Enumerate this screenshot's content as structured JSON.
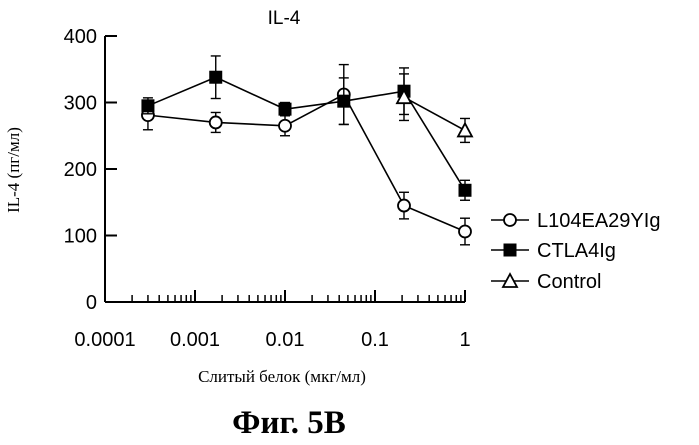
{
  "figure_label": "Фиг. 5B",
  "chart_data": {
    "type": "line",
    "title": "IL-4",
    "xlabel": "Слитый белок (мкг/мл)",
    "ylabel": "IL-4 (пг/мл)",
    "xscale": "log",
    "xlim": [
      0.0001,
      1
    ],
    "ylim": [
      0,
      400
    ],
    "x_tick_labels": [
      "0.0001",
      "0.001",
      "0.01",
      "0.1",
      "1"
    ],
    "x_tick_values": [
      0.0001,
      0.001,
      0.01,
      0.1,
      1
    ],
    "y_tick_labels": [
      "0",
      "100",
      "200",
      "300",
      "400"
    ],
    "y_tick_values": [
      0,
      100,
      200,
      300,
      400
    ],
    "grid": false,
    "legend_position": "right",
    "series": [
      {
        "name": "L104EA29YIg",
        "marker": "open-circle",
        "x": [
          0.0003,
          0.0017,
          0.01,
          0.045,
          0.21,
          1.0
        ],
        "y": [
          281,
          270,
          265,
          312,
          145,
          106
        ],
        "err": [
          22,
          15,
          15,
          45,
          20,
          20
        ]
      },
      {
        "name": "CTLA4Ig",
        "marker": "filled-square",
        "x": [
          0.0003,
          0.0017,
          0.01,
          0.045,
          0.21,
          1.0
        ],
        "y": [
          295,
          338,
          290,
          302,
          317,
          168
        ],
        "err": [
          12,
          32,
          10,
          35,
          35,
          15
        ]
      },
      {
        "name": "Control",
        "marker": "open-triangle",
        "x": [
          0.21,
          1.0
        ],
        "y": [
          308,
          258
        ],
        "err": [
          35,
          18
        ]
      }
    ]
  }
}
